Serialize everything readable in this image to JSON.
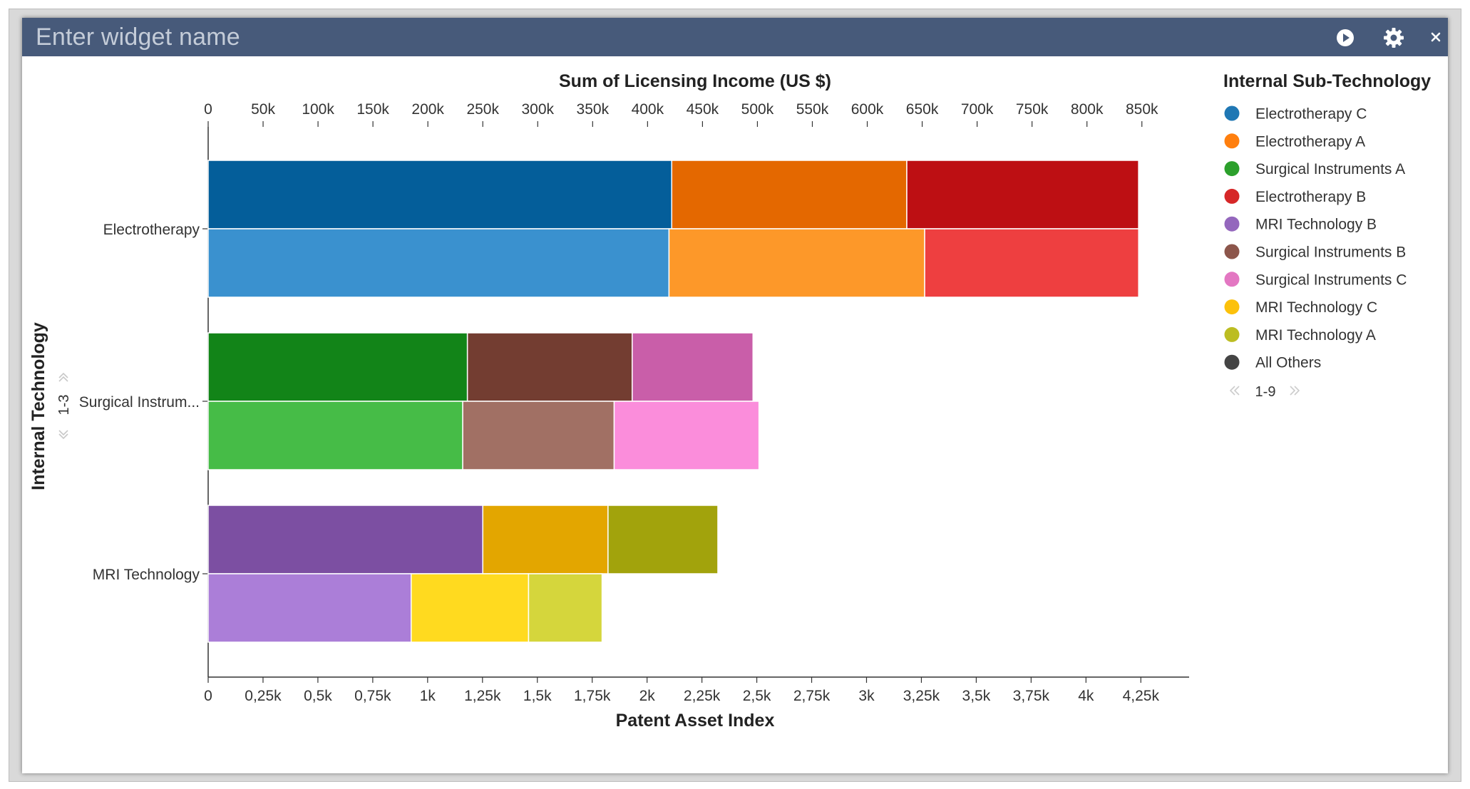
{
  "widget": {
    "placeholder": "Enter widget name",
    "icons": [
      "play-icon",
      "gear-icon",
      "close-icon"
    ]
  },
  "colors": {
    "titlebar": "#475a7a",
    "titlebar_text": "#c4ccd8",
    "axis": "#333333"
  },
  "chart_data": {
    "type": "bar",
    "orientation": "horizontal",
    "stacked": true,
    "y_axis_title": "Internal Technology",
    "y_pager": "1-3",
    "categories": [
      "Electrotherapy",
      "Surgical Instrum...",
      "MRI Technology"
    ],
    "top_axis": {
      "title": "Sum of Licensing Income (US $)",
      "ticks": [
        "0",
        "50k",
        "100k",
        "150k",
        "200k",
        "250k",
        "300k",
        "350k",
        "400k",
        "450k",
        "500k",
        "550k",
        "600k",
        "650k",
        "700k",
        "750k",
        "800k",
        "850k"
      ],
      "range": [
        0,
        893000
      ]
    },
    "bottom_axis": {
      "title": "Patent Asset Index",
      "ticks": [
        "0",
        "0,25k",
        "0,5k",
        "0,75k",
        "1k",
        "1,25k",
        "1,5k",
        "1,75k",
        "2k",
        "2,25k",
        "2,5k",
        "2,75k",
        "3k",
        "3,25k",
        "3,5k",
        "3,75k",
        "4k",
        "4,25k"
      ],
      "range": [
        0,
        4470
      ]
    },
    "income_bars": [
      {
        "category": "Electrotherapy",
        "segments": [
          {
            "series": "Electrotherapy C",
            "value": 422000,
            "color": "#045e9a"
          },
          {
            "series": "Electrotherapy A",
            "value": 214000,
            "color": "#e46800"
          },
          {
            "series": "Electrotherapy B",
            "value": 211000,
            "color": "#bd0f13"
          }
        ]
      },
      {
        "category": "Surgical Instrum...",
        "segments": [
          {
            "series": "Surgical Instruments A",
            "value": 236000,
            "color": "#128418"
          },
          {
            "series": "Surgical Instruments B",
            "value": 150000,
            "color": "#733d31"
          },
          {
            "series": "Surgical Instruments C",
            "value": 110000,
            "color": "#c95ea9"
          }
        ]
      },
      {
        "category": "MRI Technology",
        "segments": [
          {
            "series": "MRI Technology B",
            "value": 250000,
            "color": "#7c4fa2"
          },
          {
            "series": "MRI Technology C",
            "value": 114000,
            "color": "#e3a600"
          },
          {
            "series": "MRI Technology A",
            "value": 100000,
            "color": "#a2a30c"
          }
        ]
      }
    ],
    "asset_bars": [
      {
        "category": "Electrotherapy",
        "segments": [
          {
            "series": "Electrotherapy C",
            "value": 2100,
            "color": "#3a91cf"
          },
          {
            "series": "Electrotherapy A",
            "value": 1165,
            "color": "#fd9829"
          },
          {
            "series": "Electrotherapy B",
            "value": 975,
            "color": "#ee3f40"
          }
        ]
      },
      {
        "category": "Surgical Instrum...",
        "segments": [
          {
            "series": "Surgical Instruments A",
            "value": 1160,
            "color": "#46bc47"
          },
          {
            "series": "Surgical Instruments B",
            "value": 690,
            "color": "#a17064"
          },
          {
            "series": "Surgical Instruments C",
            "value": 660,
            "color": "#fb8ddb"
          }
        ]
      },
      {
        "category": "MRI Technology",
        "segments": [
          {
            "series": "MRI Technology B",
            "value": 925,
            "color": "#ab7ed8"
          },
          {
            "series": "MRI Technology C",
            "value": 535,
            "color": "#ffda1f"
          },
          {
            "series": "MRI Technology A",
            "value": 335,
            "color": "#d5d63c"
          }
        ]
      }
    ],
    "legend": {
      "title": "Internal Sub-Technology",
      "position": "right",
      "pager": "1-9",
      "items": [
        {
          "label": "Electrotherapy C",
          "color": "#1f77b4"
        },
        {
          "label": "Electrotherapy A",
          "color": "#ff7f0e"
        },
        {
          "label": "Surgical Instruments A",
          "color": "#2ca02c"
        },
        {
          "label": "Electrotherapy B",
          "color": "#d62728"
        },
        {
          "label": "MRI Technology B",
          "color": "#9467bd"
        },
        {
          "label": "Surgical Instruments B",
          "color": "#8c564b"
        },
        {
          "label": "Surgical Instruments C",
          "color": "#e377c2"
        },
        {
          "label": "MRI Technology C",
          "color": "#fcc10b"
        },
        {
          "label": "MRI Technology A",
          "color": "#bcbd22"
        },
        {
          "label": "All Others",
          "color": "#444444"
        }
      ]
    }
  }
}
